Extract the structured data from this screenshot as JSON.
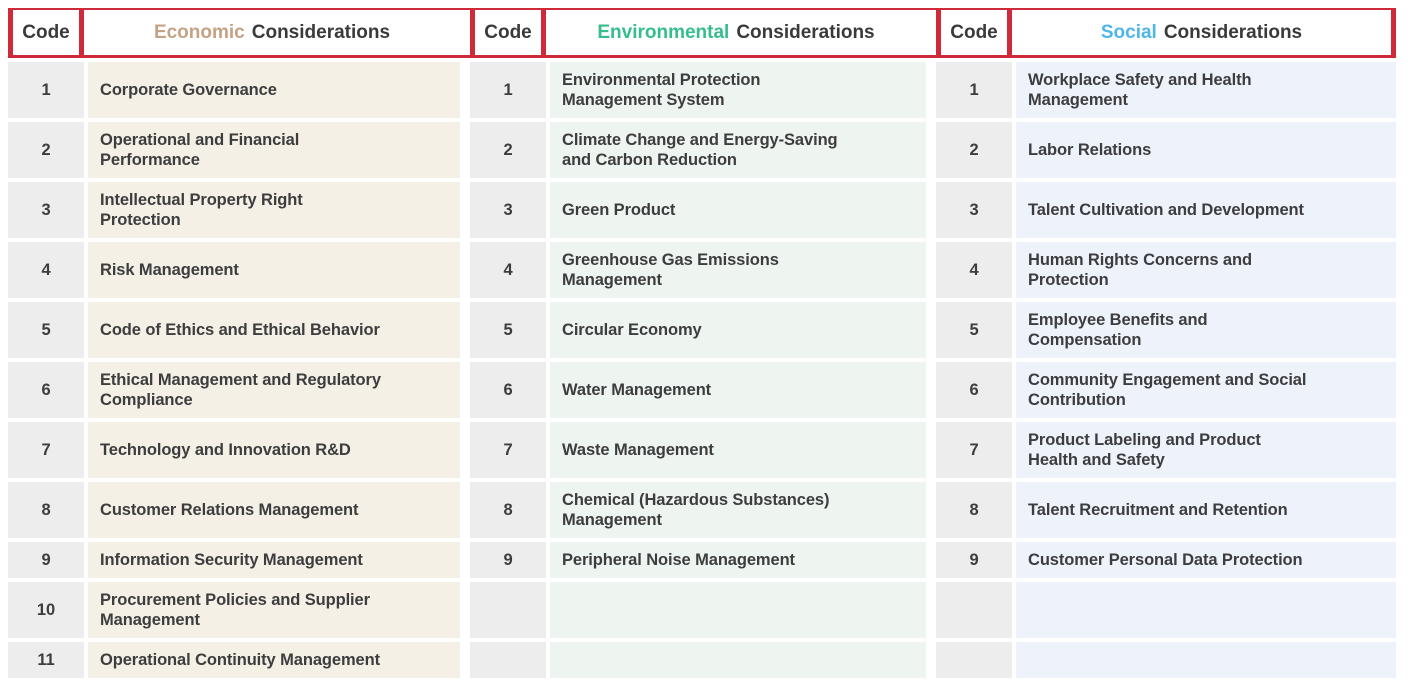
{
  "colors": {
    "border_red": "#cf2a39",
    "header_text": "#3a3a3c",
    "body_text": "#3d3d3f",
    "code_cell_bg": "#ededee",
    "page_bg": "#ffffff"
  },
  "table": {
    "sections": [
      {
        "id": "economic",
        "code_header": "Code",
        "title_highlight": "Economic",
        "title_rest": "Considerations",
        "highlight_color": "#c4a284",
        "cell_bg": "#f4f0e5",
        "rows": [
          {
            "code": "1",
            "label": "Corporate Governance"
          },
          {
            "code": "2",
            "label": "Operational and Financial\nPerformance"
          },
          {
            "code": "3",
            "label": "Intellectual Property Right\nProtection"
          },
          {
            "code": "4",
            "label": "Risk Management"
          },
          {
            "code": "5",
            "label": "Code of Ethics and Ethical Behavior"
          },
          {
            "code": "6",
            "label": "Ethical Management and Regulatory\nCompliance"
          },
          {
            "code": "7",
            "label": "Technology and Innovation R&D"
          },
          {
            "code": "8",
            "label": "Customer Relations Management"
          },
          {
            "code": "9",
            "label": "Information Security Management"
          },
          {
            "code": "10",
            "label": "Procurement Policies and Supplier\nManagement"
          },
          {
            "code": "11",
            "label": "Operational Continuity Management"
          }
        ]
      },
      {
        "id": "environmental",
        "code_header": "Code",
        "title_highlight": "Environmental",
        "title_rest": "Considerations",
        "highlight_color": "#36bd8c",
        "cell_bg": "#eef4ef",
        "rows": [
          {
            "code": "1",
            "label": "Environmental Protection\nManagement System"
          },
          {
            "code": "2",
            "label": "Climate Change and Energy-Saving\nand Carbon Reduction"
          },
          {
            "code": "3",
            "label": "Green Product"
          },
          {
            "code": "4",
            "label": "Greenhouse Gas Emissions\nManagement"
          },
          {
            "code": "5",
            "label": "Circular Economy"
          },
          {
            "code": "6",
            "label": "Water Management"
          },
          {
            "code": "7",
            "label": "Waste Management"
          },
          {
            "code": "8",
            "label": "Chemical (Hazardous Substances)\nManagement"
          },
          {
            "code": "9",
            "label": "Peripheral Noise Management"
          },
          {
            "code": "",
            "label": ""
          },
          {
            "code": "",
            "label": ""
          }
        ]
      },
      {
        "id": "social",
        "code_header": "Code",
        "title_highlight": "Social",
        "title_rest": "Considerations",
        "highlight_color": "#4fb6e8",
        "cell_bg": "#eef3fb",
        "rows": [
          {
            "code": "1",
            "label": "Workplace Safety and Health\nManagement"
          },
          {
            "code": "2",
            "label": "Labor Relations"
          },
          {
            "code": "3",
            "label": "Talent Cultivation and Development"
          },
          {
            "code": "4",
            "label": "Human Rights Concerns and\nProtection"
          },
          {
            "code": "5",
            "label": "Employee Benefits and\nCompensation"
          },
          {
            "code": "6",
            "label": "Community Engagement and Social\nContribution"
          },
          {
            "code": "7",
            "label": "Product Labeling and Product\nHealth and Safety"
          },
          {
            "code": "8",
            "label": "Talent Recruitment and Retention"
          },
          {
            "code": "9",
            "label": "Customer Personal Data Protection"
          },
          {
            "code": "",
            "label": ""
          },
          {
            "code": "",
            "label": ""
          }
        ]
      }
    ]
  }
}
